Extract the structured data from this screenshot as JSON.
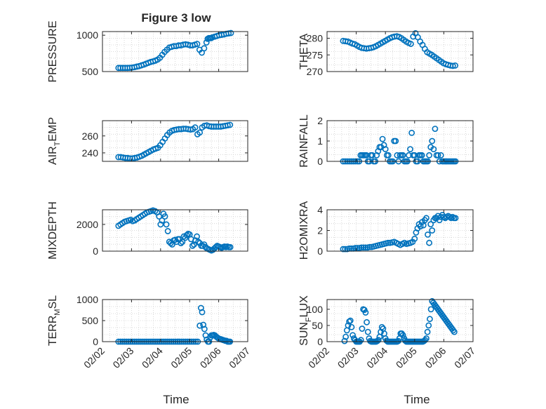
{
  "figure": {
    "title": "Figure 3 low",
    "xlabel": "Time"
  },
  "chart_data": [
    {
      "type": "scatter",
      "id": "pressure",
      "ylabel": "PRESSURE",
      "ylim": [
        500,
        1050
      ],
      "yticks": [
        "500",
        "1000"
      ],
      "ytick_values": [
        500,
        1000
      ],
      "xlim": [
        0,
        5
      ],
      "x": [
        0.55,
        0.62,
        0.7,
        0.78,
        0.86,
        0.94,
        1.02,
        1.1,
        1.18,
        1.26,
        1.34,
        1.42,
        1.5,
        1.58,
        1.66,
        1.74,
        1.82,
        1.9,
        1.98,
        2.06,
        2.14,
        2.22,
        2.3,
        2.38,
        2.46,
        2.54,
        2.62,
        2.7,
        2.78,
        2.86,
        2.94,
        3.02,
        3.1,
        3.18,
        3.26,
        3.34,
        3.42,
        3.5,
        3.58,
        3.62,
        3.66,
        3.7,
        3.74,
        3.78,
        3.86,
        3.94,
        4.02,
        4.1,
        4.18,
        4.26,
        4.34,
        4.42
      ],
      "y": [
        550,
        550,
        550,
        550,
        550,
        552,
        555,
        560,
        568,
        575,
        585,
        595,
        608,
        620,
        632,
        640,
        650,
        665,
        690,
        730,
        770,
        800,
        830,
        840,
        850,
        850,
        860,
        860,
        870,
        875,
        870,
        860,
        860,
        870,
        880,
        800,
        760,
        820,
        900,
        950,
        960,
        960,
        960,
        970,
        980,
        990,
        1000,
        1005,
        1010,
        1020,
        1025,
        1030
      ]
    },
    {
      "type": "scatter",
      "id": "theta",
      "ylabel": "THETA",
      "ylim": [
        270,
        282
      ],
      "yticks": [
        "270",
        "275",
        "280"
      ],
      "ytick_values": [
        270,
        275,
        280
      ],
      "xlim": [
        0,
        5
      ],
      "x": [
        0.55,
        0.63,
        0.71,
        0.79,
        0.87,
        0.95,
        1.03,
        1.11,
        1.19,
        1.27,
        1.35,
        1.43,
        1.51,
        1.59,
        1.67,
        1.75,
        1.83,
        1.91,
        1.99,
        2.07,
        2.15,
        2.23,
        2.31,
        2.39,
        2.47,
        2.55,
        2.63,
        2.71,
        2.79,
        2.87,
        2.95,
        3.03,
        3.11,
        3.19,
        3.27,
        3.35,
        3.43,
        3.51,
        3.59,
        3.67,
        3.75,
        3.83,
        3.91,
        3.99,
        4.07,
        4.15,
        4.23,
        4.31,
        4.39
      ],
      "y": [
        279.2,
        279.1,
        279,
        278.7,
        278.4,
        278.2,
        277.8,
        277.4,
        277.1,
        277,
        276.9,
        277,
        277.1,
        277.3,
        277.6,
        278,
        278.4,
        278.8,
        279.2,
        279.6,
        280,
        280.3,
        280.5,
        280.6,
        280.4,
        280,
        279.5,
        279,
        278.6,
        278.3,
        280.5,
        281.5,
        280.3,
        279,
        278,
        276.8,
        275.8,
        275.4,
        275,
        274.5,
        274,
        273.5,
        273,
        272.5,
        272.2,
        272,
        271.8,
        271.7,
        271.8
      ]
    },
    {
      "type": "scatter",
      "id": "airtemp",
      "ylabel_parts": [
        "AIR",
        "T",
        "EMP"
      ],
      "ylim": [
        230,
        278
      ],
      "yticks": [
        "240",
        "260"
      ],
      "ytick_values": [
        240,
        260
      ],
      "xlim": [
        0,
        5
      ],
      "x": [
        0.55,
        0.63,
        0.71,
        0.79,
        0.87,
        0.95,
        1.03,
        1.11,
        1.19,
        1.27,
        1.35,
        1.43,
        1.51,
        1.59,
        1.67,
        1.75,
        1.83,
        1.91,
        1.99,
        2.07,
        2.15,
        2.23,
        2.31,
        2.39,
        2.47,
        2.55,
        2.63,
        2.71,
        2.79,
        2.87,
        2.95,
        3.03,
        3.11,
        3.19,
        3.27,
        3.35,
        3.43,
        3.51,
        3.59,
        3.67,
        3.75,
        3.83,
        3.91,
        3.99,
        4.07,
        4.15,
        4.23,
        4.31,
        4.39
      ],
      "y": [
        235,
        235,
        234.5,
        234,
        234,
        233.5,
        233.5,
        234,
        234.5,
        235.5,
        236.5,
        238,
        239.5,
        241,
        242.5,
        244,
        245,
        246,
        249,
        253,
        257,
        261,
        264,
        266,
        267,
        267.5,
        268,
        268,
        268.5,
        268.5,
        268,
        267.5,
        268,
        270,
        262,
        264,
        270,
        272,
        272.5,
        271.5,
        271,
        271,
        271,
        271,
        271,
        271.5,
        272,
        272.5,
        273
      ]
    },
    {
      "type": "scatter",
      "id": "rainfall",
      "ylabel": "RAINFALL",
      "ylim": [
        0,
        2
      ],
      "yticks": [
        "0",
        "1",
        "2"
      ],
      "ytick_values": [
        0,
        1,
        2
      ],
      "xlim": [
        0,
        5
      ],
      "x": [
        0.55,
        0.62,
        0.69,
        0.76,
        0.83,
        0.9,
        0.97,
        1.04,
        1.1,
        1.15,
        1.2,
        1.25,
        1.3,
        1.35,
        1.4,
        1.45,
        1.5,
        1.55,
        1.6,
        1.65,
        1.7,
        1.75,
        1.8,
        1.85,
        1.9,
        1.95,
        2.0,
        2.05,
        2.1,
        2.15,
        2.2,
        2.25,
        2.3,
        2.35,
        2.4,
        2.45,
        2.5,
        2.55,
        2.6,
        2.65,
        2.7,
        2.75,
        2.8,
        2.85,
        2.9,
        2.95,
        3.0,
        3.05,
        3.1,
        3.15,
        3.2,
        3.25,
        3.3,
        3.35,
        3.4,
        3.45,
        3.5,
        3.55,
        3.6,
        3.65,
        3.7,
        3.75,
        3.8,
        3.85,
        3.9,
        3.95,
        4.0,
        4.05,
        4.1,
        4.15,
        4.2,
        4.25,
        4.3,
        4.35,
        4.4
      ],
      "y": [
        0,
        0,
        0,
        0,
        0,
        0,
        0,
        0,
        0,
        0.3,
        0.3,
        0.3,
        0.3,
        0.3,
        0,
        0,
        0.3,
        0.3,
        0,
        0,
        0.3,
        0.5,
        0.7,
        0.7,
        1.1,
        0.8,
        0.6,
        0.3,
        0.3,
        0,
        0,
        0,
        1.0,
        1.0,
        0.3,
        0,
        0.3,
        0.3,
        0.3,
        0,
        0,
        0,
        0.3,
        0.6,
        1.4,
        0.3,
        0.3,
        0,
        0,
        0.3,
        0.3,
        0.3,
        0,
        0,
        0,
        0,
        0.3,
        0.7,
        1.0,
        0.6,
        1.6,
        0.3,
        0.3,
        0,
        0.3,
        0,
        0,
        0,
        0,
        0,
        0,
        0,
        0,
        0,
        0
      ]
    },
    {
      "type": "scatter",
      "id": "mixdepth",
      "ylabel": "MIXDEPTH",
      "ylim": [
        0,
        3100
      ],
      "yticks": [
        "0",
        "2000"
      ],
      "ytick_values": [
        0,
        2000
      ],
      "xlim": [
        0,
        5
      ],
      "x": [
        0.55,
        0.62,
        0.69,
        0.76,
        0.83,
        0.9,
        0.97,
        1.04,
        1.11,
        1.18,
        1.25,
        1.32,
        1.39,
        1.46,
        1.53,
        1.6,
        1.67,
        1.74,
        1.81,
        1.88,
        1.95,
        2.0,
        2.05,
        2.1,
        2.15,
        2.2,
        2.25,
        2.3,
        2.35,
        2.4,
        2.45,
        2.5,
        2.55,
        2.6,
        2.65,
        2.7,
        2.75,
        2.8,
        2.85,
        2.9,
        2.95,
        3.0,
        3.05,
        3.1,
        3.15,
        3.2,
        3.25,
        3.3,
        3.35,
        3.4,
        3.45,
        3.5,
        3.55,
        3.6,
        3.65,
        3.7,
        3.75,
        3.8,
        3.85,
        3.9,
        3.95,
        4.0,
        4.05,
        4.1,
        4.15,
        4.2,
        4.25,
        4.3,
        4.35,
        4.4
      ],
      "y": [
        1900,
        2000,
        2100,
        2200,
        2250,
        2300,
        2350,
        2250,
        2300,
        2400,
        2500,
        2600,
        2700,
        2800,
        2900,
        2950,
        3000,
        3050,
        3000,
        2900,
        2600,
        2000,
        2300,
        2800,
        2600,
        2000,
        1500,
        700,
        600,
        500,
        800,
        850,
        700,
        900,
        900,
        600,
        700,
        1100,
        1000,
        1200,
        1300,
        1250,
        900,
        400,
        500,
        800,
        1100,
        700,
        600,
        400,
        400,
        500,
        300,
        200,
        150,
        100,
        50,
        100,
        200,
        300,
        400,
        350,
        300,
        250,
        300,
        350,
        300,
        350,
        300,
        300
      ]
    },
    {
      "type": "scatter",
      "id": "h2omixra",
      "ylabel": "H2OMIXRA",
      "ylim": [
        0,
        4
      ],
      "yticks": [
        "0",
        "2",
        "4"
      ],
      "ytick_values": [
        0,
        2,
        4
      ],
      "xlim": [
        0,
        5
      ],
      "x": [
        0.55,
        0.62,
        0.69,
        0.76,
        0.83,
        0.9,
        0.97,
        1.04,
        1.11,
        1.18,
        1.25,
        1.32,
        1.39,
        1.46,
        1.53,
        1.6,
        1.67,
        1.74,
        1.81,
        1.88,
        1.95,
        2.02,
        2.09,
        2.16,
        2.23,
        2.3,
        2.37,
        2.44,
        2.51,
        2.58,
        2.65,
        2.72,
        2.79,
        2.86,
        2.93,
        3.0,
        3.05,
        3.1,
        3.15,
        3.2,
        3.25,
        3.3,
        3.35,
        3.4,
        3.45,
        3.5,
        3.55,
        3.6,
        3.65,
        3.7,
        3.75,
        3.8,
        3.85,
        3.9,
        3.95,
        4.0,
        4.05,
        4.1,
        4.15,
        4.2,
        4.25,
        4.3,
        4.35,
        4.4
      ],
      "y": [
        0.2,
        0.2,
        0.2,
        0.25,
        0.25,
        0.25,
        0.3,
        0.3,
        0.3,
        0.35,
        0.35,
        0.35,
        0.35,
        0.4,
        0.4,
        0.45,
        0.5,
        0.55,
        0.6,
        0.65,
        0.7,
        0.75,
        0.8,
        0.8,
        0.85,
        0.9,
        0.8,
        0.7,
        0.6,
        0.7,
        0.8,
        0.7,
        0.75,
        0.8,
        0.9,
        1.2,
        1.8,
        2.2,
        2.6,
        2.4,
        2.8,
        2.5,
        3.0,
        3.2,
        1.6,
        0.8,
        2.6,
        2.0,
        3.0,
        3.2,
        3.2,
        3.4,
        3.0,
        3.3,
        3.5,
        3.3,
        3.2,
        3.3,
        3.4,
        3.3,
        3.2,
        3.3,
        3.2,
        3.2
      ]
    },
    {
      "type": "scatter",
      "id": "terrmsl",
      "ylabel_parts": [
        "TERR",
        "M",
        "SL"
      ],
      "ylim": [
        0,
        1000
      ],
      "yticks": [
        "0",
        "500",
        "1000"
      ],
      "ytick_values": [
        0,
        500,
        1000
      ],
      "xlim": [
        0,
        5
      ],
      "x": [
        0.55,
        0.62,
        0.69,
        0.76,
        0.83,
        0.9,
        0.97,
        1.04,
        1.11,
        1.18,
        1.25,
        1.32,
        1.39,
        1.46,
        1.53,
        1.6,
        1.67,
        1.74,
        1.81,
        1.88,
        1.95,
        2.02,
        2.09,
        2.16,
        2.23,
        2.3,
        2.37,
        2.44,
        2.51,
        2.58,
        2.65,
        2.72,
        2.79,
        2.86,
        2.93,
        3.0,
        3.07,
        3.14,
        3.21,
        3.28,
        3.35,
        3.39,
        3.43,
        3.47,
        3.51,
        3.55,
        3.59,
        3.63,
        3.67,
        3.71,
        3.75,
        3.79,
        3.83,
        3.87,
        3.91,
        3.95,
        3.99,
        4.03,
        4.07,
        4.11,
        4.15,
        4.19,
        4.23,
        4.27,
        4.31,
        4.35,
        4.39
      ],
      "y": [
        0,
        0,
        0,
        0,
        0,
        0,
        0,
        0,
        0,
        0,
        0,
        0,
        0,
        0,
        0,
        0,
        0,
        0,
        0,
        0,
        0,
        0,
        0,
        0,
        0,
        0,
        0,
        0,
        0,
        0,
        0,
        0,
        0,
        0,
        0,
        0,
        0,
        0,
        0,
        0,
        380,
        800,
        700,
        400,
        300,
        150,
        50,
        0,
        0,
        100,
        150,
        150,
        160,
        150,
        120,
        100,
        80,
        60,
        60,
        50,
        40,
        30,
        20,
        20,
        0,
        0,
        0
      ]
    },
    {
      "type": "scatter",
      "id": "sunflux",
      "ylabel_parts": [
        "SUN",
        "F",
        "LUX"
      ],
      "ylim": [
        0,
        130
      ],
      "yticks": [
        "0",
        "50",
        "100"
      ],
      "ytick_values": [
        0,
        50,
        100
      ],
      "xlim": [
        0,
        5
      ],
      "x": [
        0.6,
        0.64,
        0.68,
        0.72,
        0.76,
        0.8,
        0.84,
        0.88,
        0.92,
        0.96,
        1.0,
        1.04,
        1.08,
        1.12,
        1.16,
        1.2,
        1.24,
        1.28,
        1.32,
        1.36,
        1.4,
        1.44,
        1.48,
        1.52,
        1.56,
        1.6,
        1.64,
        1.68,
        1.72,
        1.76,
        1.8,
        1.84,
        1.88,
        1.92,
        1.96,
        2.0,
        2.04,
        2.08,
        2.12,
        2.16,
        2.2,
        2.24,
        2.28,
        2.32,
        2.36,
        2.4,
        2.44,
        2.48,
        2.52,
        2.56,
        2.6,
        2.64,
        2.68,
        2.72,
        2.76,
        2.8,
        2.84,
        2.88,
        2.92,
        2.96,
        3.0,
        3.04,
        3.08,
        3.12,
        3.16,
        3.2,
        3.24,
        3.28,
        3.32,
        3.36,
        3.4,
        3.44,
        3.48,
        3.52,
        3.56,
        3.6,
        3.64,
        3.68,
        3.72,
        3.76,
        3.8,
        3.84,
        3.88,
        3.92,
        3.96,
        4.0,
        4.04,
        4.08,
        4.12,
        4.16,
        4.2,
        4.24,
        4.28,
        4.32,
        4.36
      ],
      "y": [
        2,
        15,
        35,
        50,
        62,
        65,
        45,
        20,
        10,
        5,
        0,
        0,
        0,
        0,
        5,
        40,
        100,
        98,
        90,
        60,
        30,
        10,
        2,
        0,
        0,
        0,
        0,
        0,
        2,
        5,
        15,
        30,
        45,
        40,
        25,
        10,
        3,
        0,
        0,
        0,
        0,
        0,
        0,
        0,
        0,
        0,
        2,
        10,
        25,
        25,
        20,
        10,
        3,
        0,
        0,
        0,
        0,
        0,
        0,
        0,
        0,
        0,
        0,
        0,
        0,
        0,
        0,
        0,
        2,
        5,
        10,
        30,
        50,
        70,
        100,
        125,
        120,
        115,
        110,
        105,
        100,
        95,
        90,
        85,
        80,
        75,
        70,
        65,
        60,
        55,
        50,
        45,
        40,
        35,
        30
      ],
      "note_ignore": ""
    }
  ],
  "x_axis": {
    "tick_labels": [
      "02/02",
      "02/03",
      "02/04",
      "02/05",
      "02/06",
      "02/07"
    ],
    "tick_values": [
      0,
      1,
      2,
      3,
      4,
      5
    ]
  },
  "colors": {
    "marker": "#0072BD",
    "axis": "#262626",
    "grid": "#d0d0d0"
  }
}
